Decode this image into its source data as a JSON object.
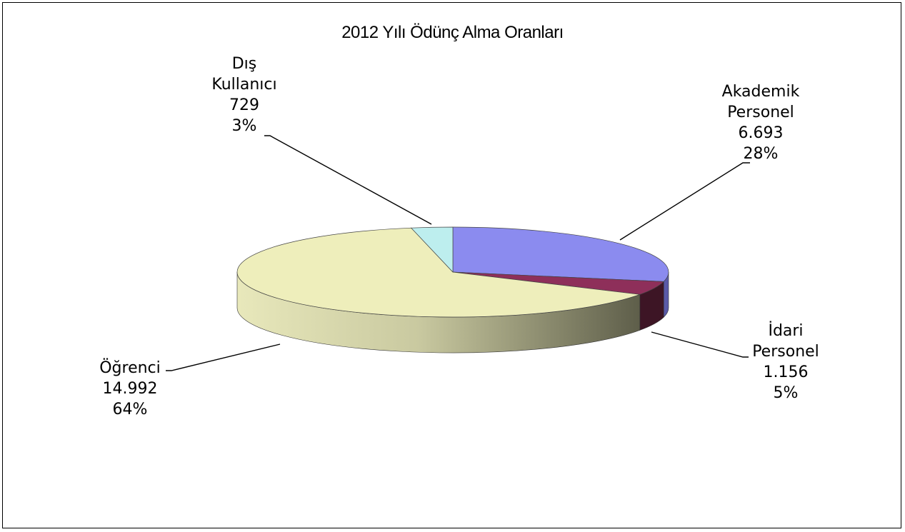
{
  "chart_data": {
    "type": "pie",
    "style": "3d-pie",
    "title": "2012 Yılı Ödünç Alma Oranları",
    "slices": [
      {
        "name": "Akademik Personel",
        "label_lines": [
          "Akademik",
          "Personel"
        ],
        "value": 6693,
        "value_text": "6.693",
        "percent_text": "28%",
        "color": "#8b8bef",
        "side_color": "#5a5aa8"
      },
      {
        "name": "İdari Personel",
        "label_lines": [
          "İdari",
          "Personel"
        ],
        "value": 1156,
        "value_text": "1.156",
        "percent_text": "5%",
        "color": "#8e2f5a",
        "side_color": "#3d1525"
      },
      {
        "name": "Öğrenci",
        "label_lines": [
          "Öğrenci"
        ],
        "value": 14992,
        "value_text": "14.992",
        "percent_text": "64%",
        "color": "#eeeebb",
        "side_color": "#b8b89a"
      },
      {
        "name": "Dış Kullanıcı",
        "label_lines": [
          "Dış",
          "Kullanıcı"
        ],
        "value": 729,
        "value_text": "729",
        "percent_text": "3%",
        "color": "#bdeeee",
        "side_color": "#8fc4c4"
      }
    ],
    "legend": "none",
    "data_labels": "category-value-percent with leader lines"
  }
}
